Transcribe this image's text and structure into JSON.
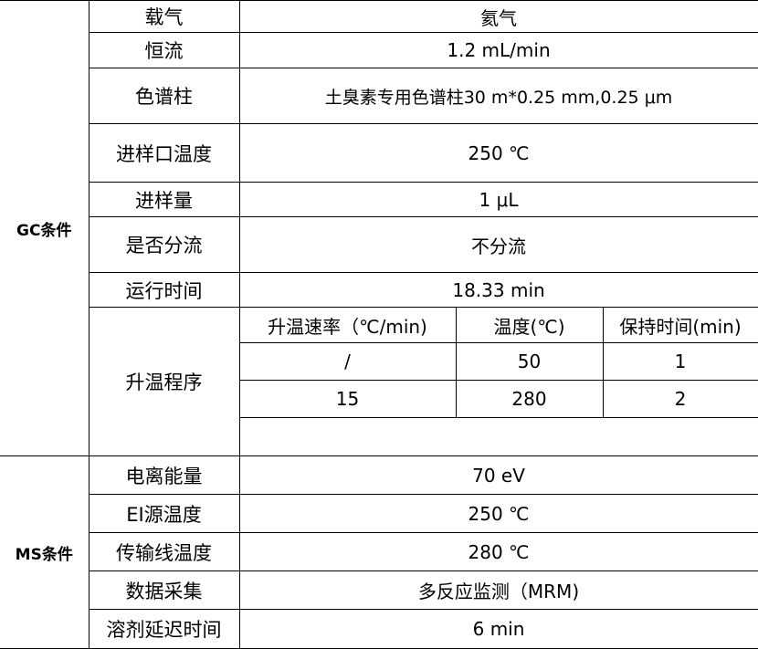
{
  "gc": {
    "section_label": "GC条件",
    "rows": [
      {
        "label": "载气",
        "value": "氦气"
      },
      {
        "label": "恒流",
        "value": "1.2 mL/min"
      },
      {
        "label": "色谱柱",
        "value": "土臭素专用色谱柱30 m*0.25 mm,0.25 μm"
      },
      {
        "label": "进样口温度",
        "value": "250 ℃"
      },
      {
        "label": "进样量",
        "value": "1 μL"
      },
      {
        "label": "是否分流",
        "value": "不分流"
      },
      {
        "label": "运行时间",
        "value": "18.33 min"
      }
    ],
    "temperature_program": {
      "label": "升温程序",
      "headers": [
        "升温速率（℃/min)",
        "温度(℃)",
        "保持时间(min)"
      ],
      "rows": [
        [
          "/",
          "50",
          "1"
        ],
        [
          "15",
          "280",
          "2"
        ]
      ]
    }
  },
  "ms": {
    "section_label": "MS条件",
    "rows": [
      {
        "label": "电离能量",
        "value": "70 eV"
      },
      {
        "label": "EI源温度",
        "value": "250 ℃"
      },
      {
        "label": "传输线温度",
        "value": "280 ℃"
      },
      {
        "label": "数据采集",
        "value": "多反应监测（MRM)"
      },
      {
        "label": "溶剂延迟时间",
        "value": "6 min"
      }
    ]
  }
}
